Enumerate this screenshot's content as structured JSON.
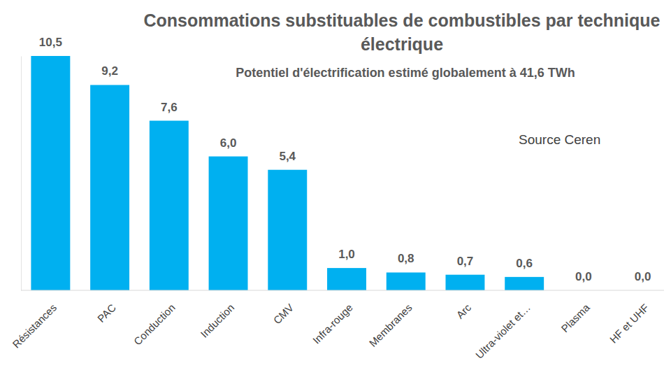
{
  "chart_data": {
    "type": "bar",
    "title": "Consommations substituables de combustibles par technique électrique",
    "subtitle": "Potentiel d'électrification estimé globalement à 41,6 TWh",
    "annotation": "Source Ceren",
    "categories": [
      "Résistances",
      "PAC",
      "Conduction",
      "Induction",
      "CMV",
      "Infra-rouge",
      "Membranes",
      "Arc",
      "Ultra-violet et…",
      "Plasma",
      "HF et UHF"
    ],
    "values": [
      10.5,
      9.2,
      7.6,
      6.0,
      5.4,
      1.0,
      0.8,
      0.7,
      0.6,
      0.0,
      0.0
    ],
    "value_labels": [
      "10,5",
      "9,2",
      "7,6",
      "6,0",
      "5,4",
      "1,0",
      "0,8",
      "0,7",
      "0,6",
      "0,0",
      "0,0"
    ],
    "color": "#00b0f0",
    "ylim": [
      0,
      10.5
    ],
    "data_labels": true,
    "tick_labels": "x",
    "grid": false
  }
}
